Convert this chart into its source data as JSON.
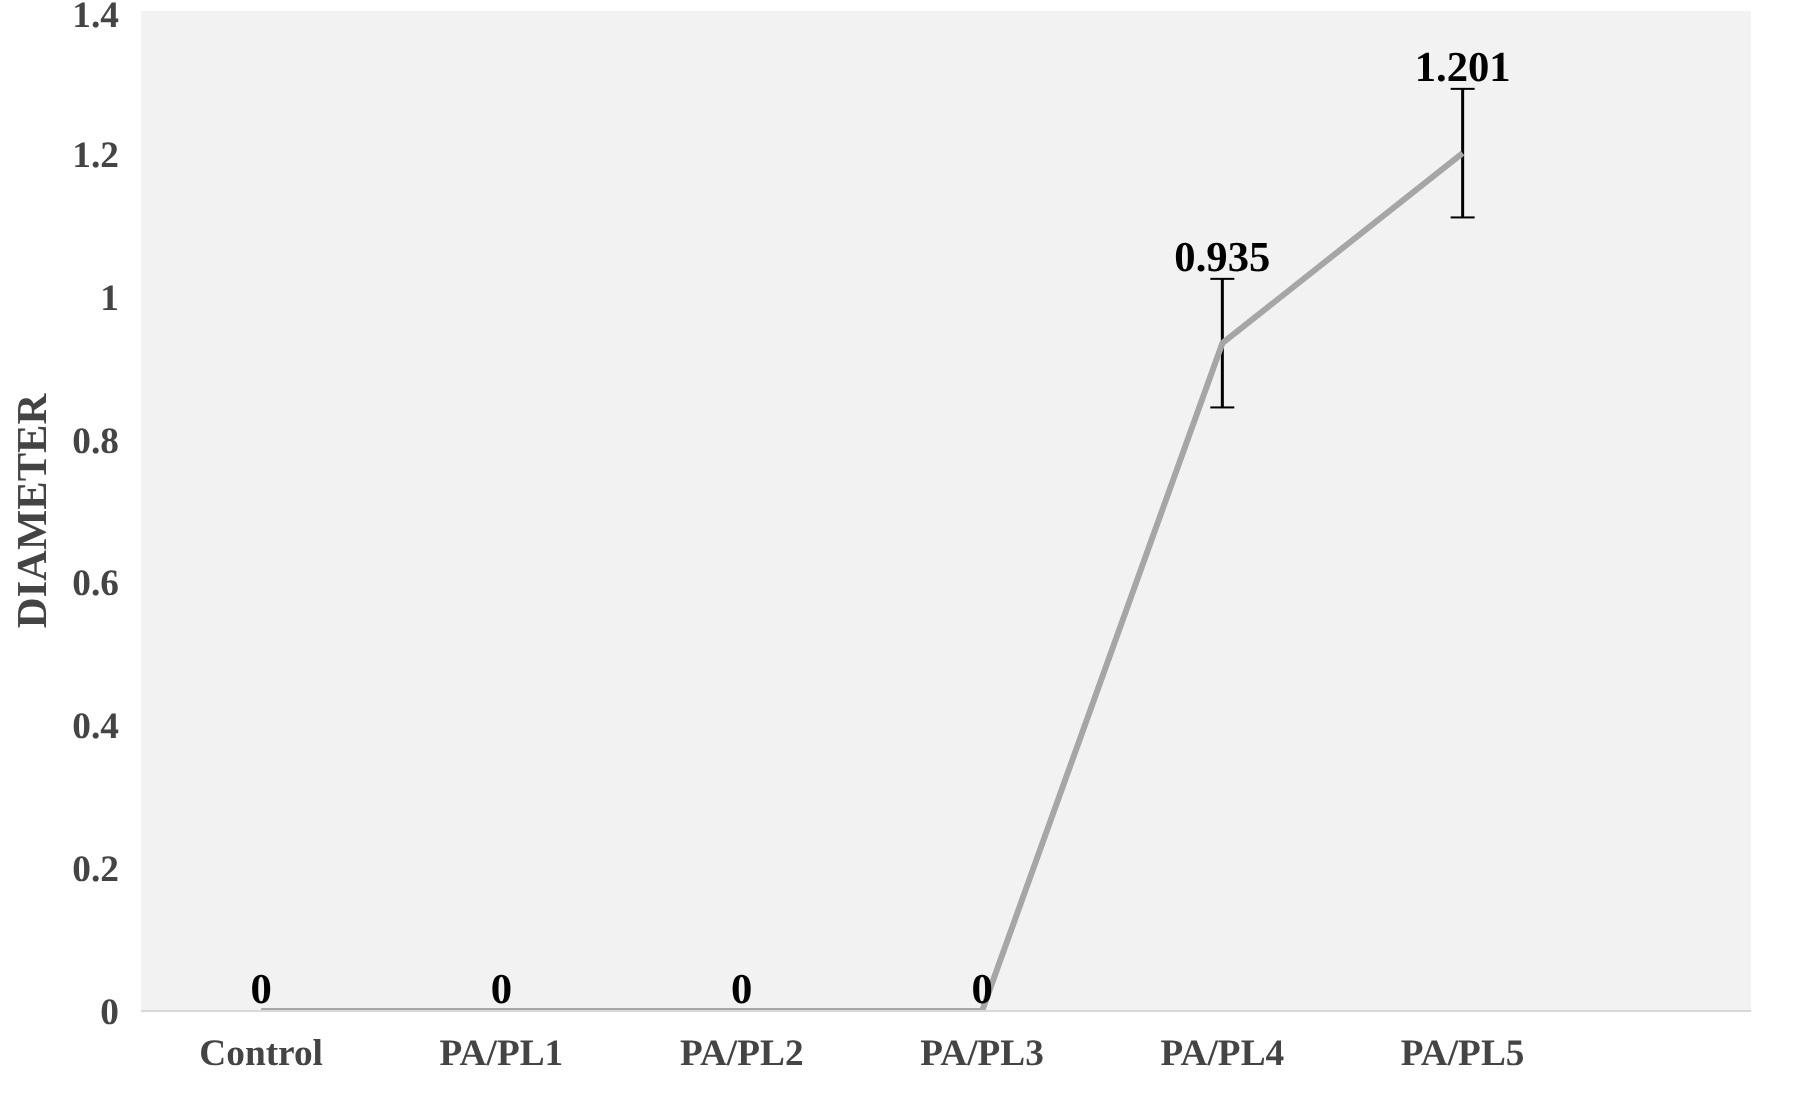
{
  "chart_data": {
    "type": "line",
    "ylabel": "DIAMETER",
    "categories": [
      "Control",
      "PA/PL1",
      "PA/PL2",
      "PA/PL3",
      "PA/PL4",
      "PA/PL5"
    ],
    "series": [
      {
        "color": "#a6a6a6",
        "values": [
          0,
          0,
          0,
          0,
          0.935,
          1.201
        ],
        "errors": [
          null,
          null,
          null,
          null,
          0.09,
          0.09
        ]
      }
    ],
    "ylim": [
      0,
      1.4
    ],
    "yticks": [
      0,
      0.2,
      0.4,
      0.6,
      0.8,
      1,
      1.2,
      1.4
    ],
    "data_labels": true,
    "grid": false,
    "marker": "none",
    "line_style": "solid"
  }
}
